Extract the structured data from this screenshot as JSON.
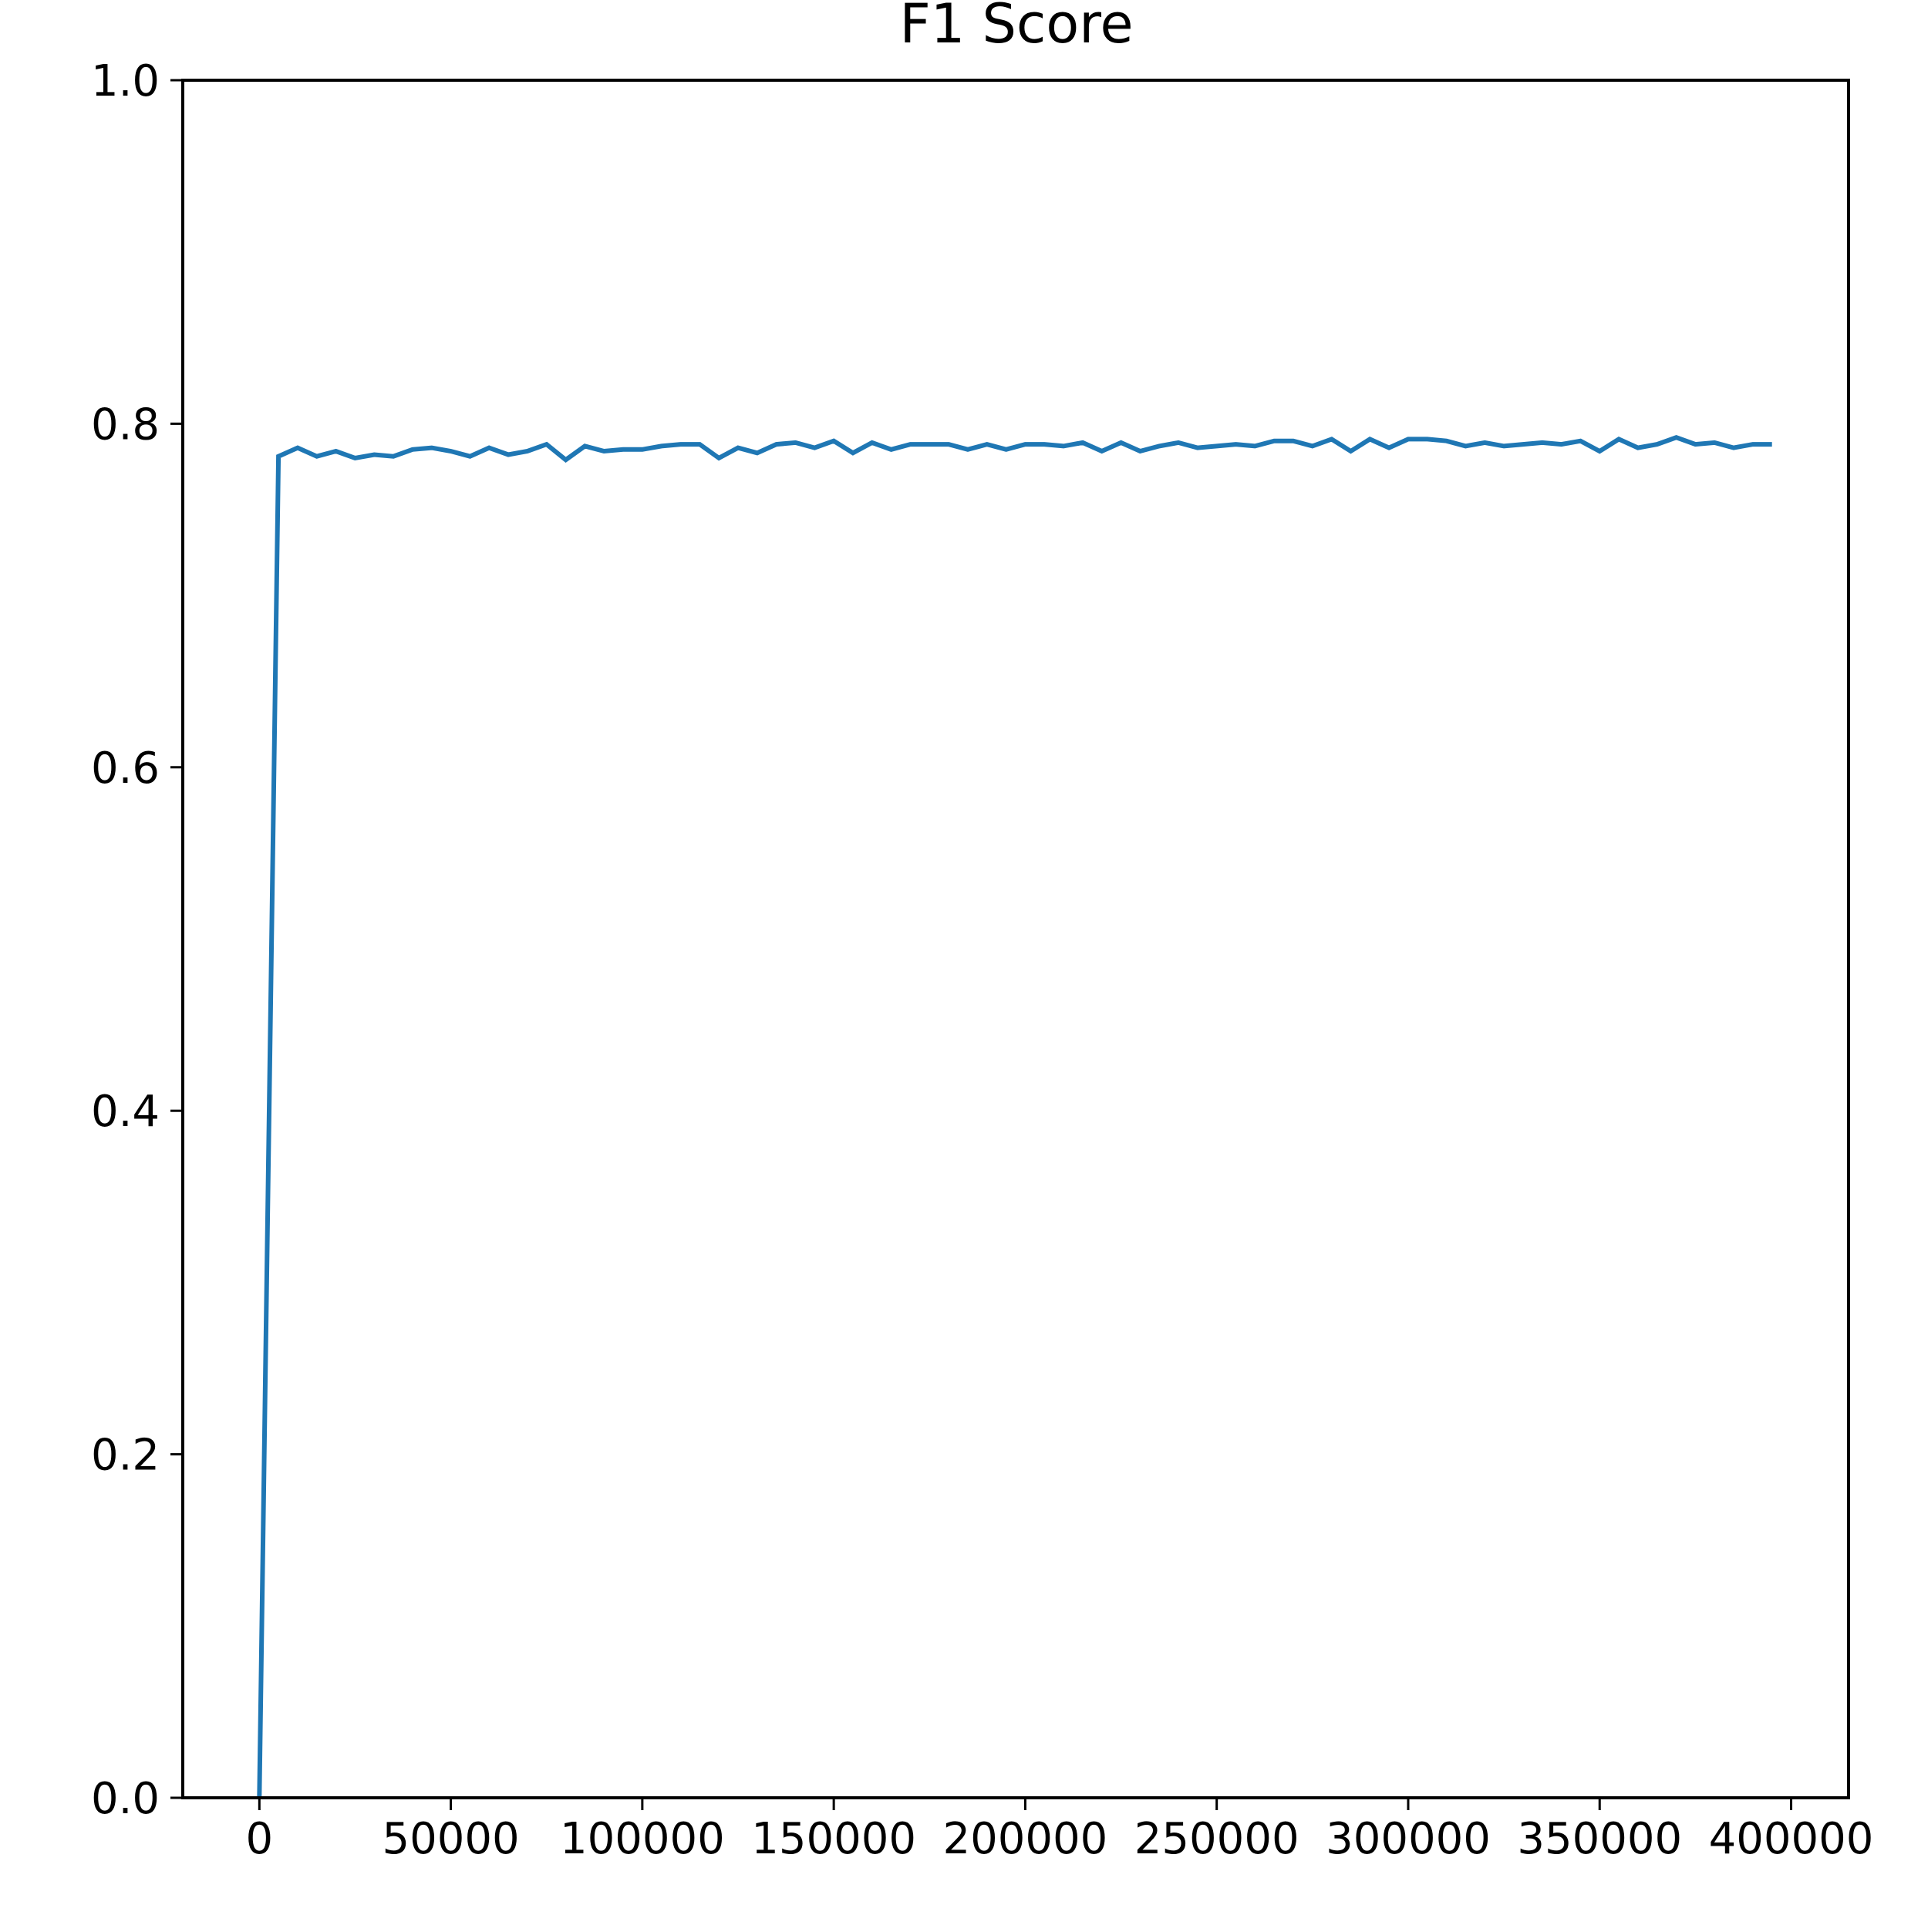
{
  "chart_data": {
    "type": "line",
    "title": "F1 Score",
    "xlabel": "",
    "ylabel": "",
    "xlim": [
      -20000,
      415000
    ],
    "ylim": [
      0.0,
      1.0
    ],
    "xticks": [
      0,
      50000,
      100000,
      150000,
      200000,
      250000,
      300000,
      350000,
      400000
    ],
    "xtick_labels": [
      "0",
      "50000",
      "100000",
      "150000",
      "200000",
      "250000",
      "300000",
      "350000",
      "400000"
    ],
    "yticks": [
      0.0,
      0.2,
      0.4,
      0.6,
      0.8,
      1.0
    ],
    "ytick_labels": [
      "0.0",
      "0.2",
      "0.4",
      "0.6",
      "0.8",
      "1.0"
    ],
    "grid": false,
    "colors": {
      "series": "#1f77b4",
      "axes": "#000000",
      "background": "#ffffff"
    },
    "series": [
      {
        "x": [
          0,
          5000,
          10000,
          15000,
          20000,
          25000,
          30000,
          35000,
          40000,
          45000,
          50000,
          55000,
          60000,
          65000,
          70000,
          75000,
          80000,
          85000,
          90000,
          95000,
          100000,
          105000,
          110000,
          115000,
          120000,
          125000,
          130000,
          135000,
          140000,
          145000,
          150000,
          155000,
          160000,
          165000,
          170000,
          175000,
          180000,
          185000,
          190000,
          195000,
          200000,
          205000,
          210000,
          215000,
          220000,
          225000,
          230000,
          235000,
          240000,
          245000,
          250000,
          255000,
          260000,
          265000,
          270000,
          275000,
          280000,
          285000,
          290000,
          295000,
          300000,
          305000,
          310000,
          315000,
          320000,
          325000,
          330000,
          335000,
          340000,
          345000,
          350000,
          355000,
          360000,
          365000,
          370000,
          375000,
          380000,
          385000,
          390000,
          395000
        ],
        "y": [
          0.0,
          0.781,
          0.786,
          0.781,
          0.784,
          0.78,
          0.782,
          0.781,
          0.785,
          0.786,
          0.784,
          0.781,
          0.786,
          0.782,
          0.784,
          0.788,
          0.779,
          0.787,
          0.784,
          0.785,
          0.785,
          0.787,
          0.788,
          0.788,
          0.78,
          0.786,
          0.783,
          0.788,
          0.789,
          0.786,
          0.79,
          0.783,
          0.789,
          0.785,
          0.788,
          0.788,
          0.788,
          0.785,
          0.788,
          0.785,
          0.788,
          0.788,
          0.787,
          0.789,
          0.784,
          0.789,
          0.784,
          0.787,
          0.789,
          0.786,
          0.787,
          0.788,
          0.787,
          0.79,
          0.79,
          0.787,
          0.791,
          0.784,
          0.791,
          0.786,
          0.791,
          0.791,
          0.79,
          0.787,
          0.789,
          0.787,
          0.788,
          0.789,
          0.788,
          0.79,
          0.784,
          0.791,
          0.786,
          0.788,
          0.792,
          0.788,
          0.789,
          0.786,
          0.788,
          0.788
        ]
      }
    ]
  }
}
